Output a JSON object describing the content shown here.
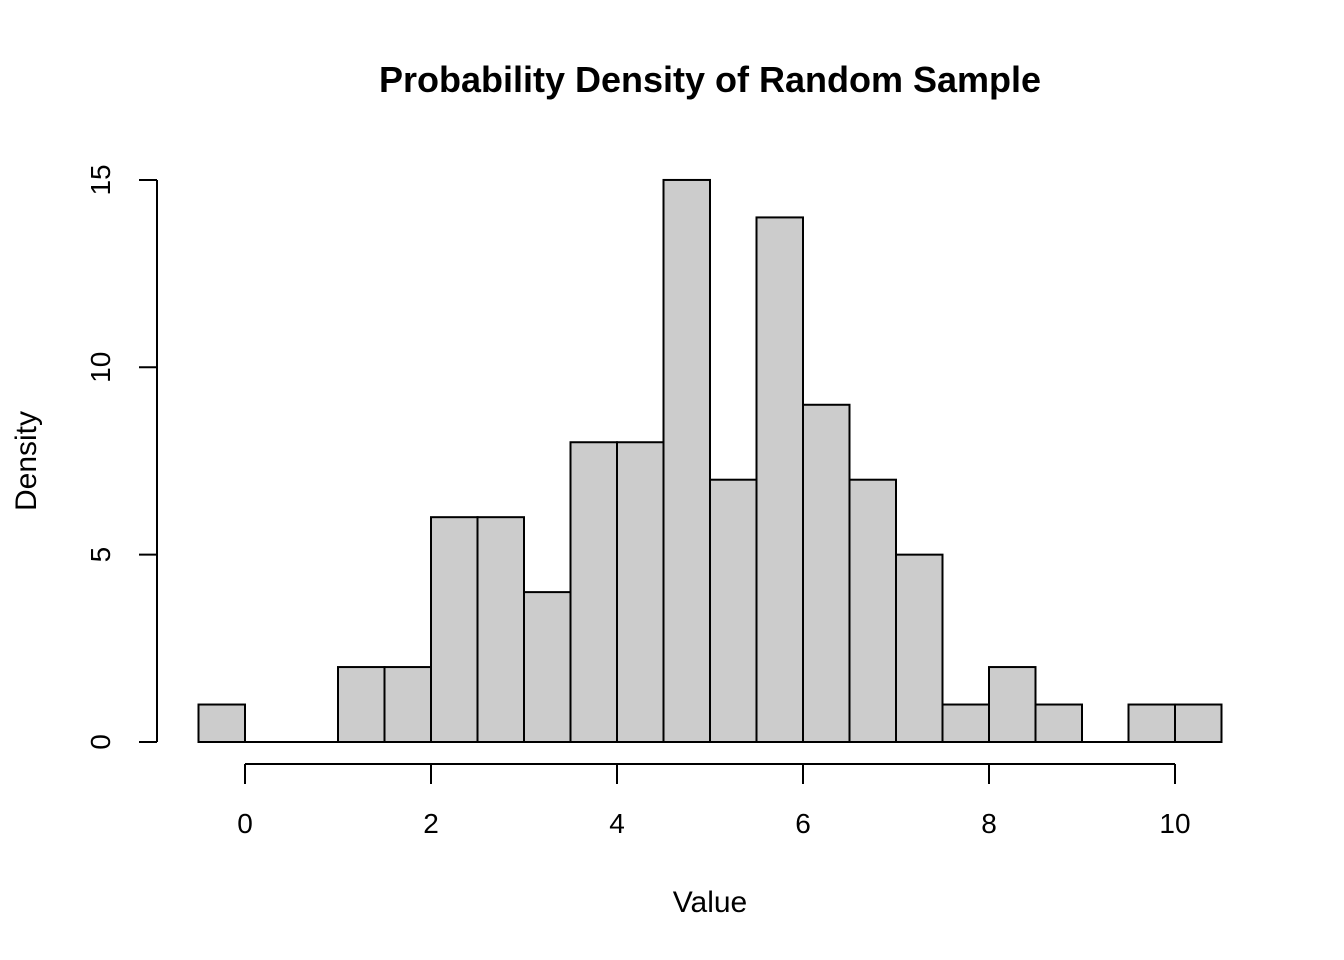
{
  "chart_data": {
    "type": "bar",
    "title": "Probability Density of Random Sample",
    "xlabel": "Value",
    "ylabel": "Density",
    "bin_width": 0.5,
    "bins_start": [
      -0.5,
      0.0,
      0.5,
      1.0,
      1.5,
      2.0,
      2.5,
      3.0,
      3.5,
      4.0,
      4.5,
      5.0,
      5.5,
      6.0,
      6.5,
      7.0,
      7.5,
      8.0,
      8.5,
      9.0,
      9.5,
      10.0
    ],
    "values": [
      1,
      0,
      0,
      2,
      2,
      6,
      6,
      4,
      8,
      8,
      15,
      7,
      14,
      9,
      7,
      5,
      1,
      2,
      1,
      0,
      1,
      1
    ],
    "xlim": [
      -0.5,
      10.5
    ],
    "ylim": [
      0,
      15
    ],
    "x_ticks": [
      0,
      2,
      4,
      6,
      8,
      10
    ],
    "x_tick_labels": [
      "0",
      "2",
      "4",
      "6",
      "8",
      "10"
    ],
    "y_ticks": [
      0,
      5,
      10,
      15
    ],
    "y_tick_labels": [
      "0",
      "5",
      "10",
      "15"
    ],
    "grid": false,
    "legend": "none",
    "colors": {
      "bar_fill": "#cccccc",
      "bar_stroke": "#000000"
    }
  }
}
